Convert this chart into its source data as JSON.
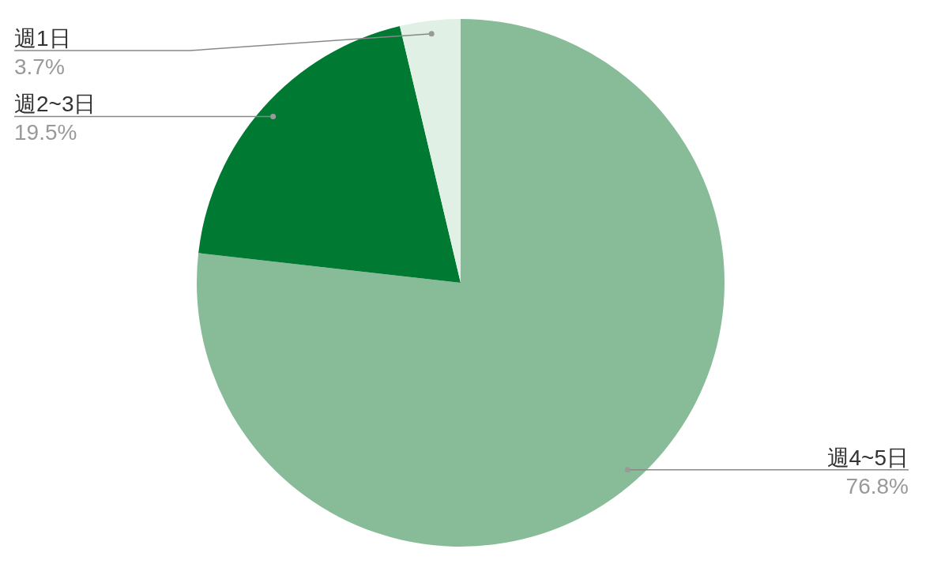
{
  "chart_data": {
    "type": "pie",
    "categories": [
      "週4~5日",
      "週2~3日",
      "週1日"
    ],
    "values": [
      76.8,
      19.5,
      3.7
    ],
    "colors": [
      "#88bc98",
      "#007a33",
      "#e0f0e4"
    ],
    "value_labels": [
      "76.8%",
      "19.5%",
      "3.7%"
    ],
    "legend": false
  }
}
